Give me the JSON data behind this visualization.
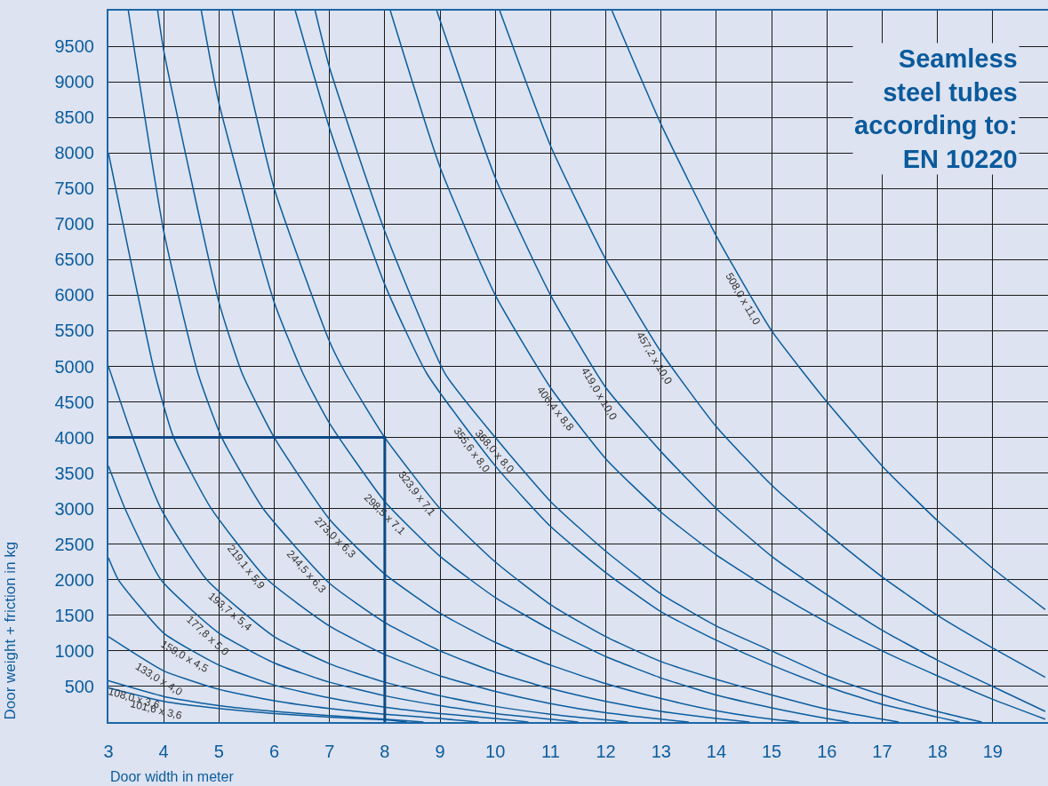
{
  "chart_data": {
    "type": "line",
    "title": "Seamless\nsteel tubes\naccording to:\nEN 10220",
    "xlabel": "Door width in meter",
    "ylabel": "Door weight + friction in kg",
    "xlim": [
      3,
      20
    ],
    "ylim": [
      0,
      10000
    ],
    "xticks": [
      3,
      4,
      5,
      6,
      7,
      8,
      9,
      10,
      11,
      12,
      13,
      14,
      15,
      16,
      17,
      18,
      19
    ],
    "yticks": [
      {
        "value": 0,
        "label": null
      },
      500,
      1000,
      1500,
      2000,
      2500,
      3000,
      3500,
      4000,
      4500,
      5000,
      5500,
      6000,
      6500,
      7000,
      7500,
      8000,
      8500,
      9000,
      9500,
      {
        "value": 10000,
        "label": null
      }
    ],
    "grid": true,
    "series": [
      {
        "color": "#0b5c9e",
        "x": [
          3,
          4,
          5,
          6,
          7,
          8,
          8.4
        ],
        "values": [
          480,
          290,
          190,
          120,
          70,
          30,
          0
        ]
      },
      {
        "color": "#0b5c9e",
        "x": [
          3,
          4,
          5,
          6,
          7,
          8,
          8.7
        ],
        "values": [
          580,
          360,
          230,
          150,
          90,
          40,
          0
        ]
      },
      {
        "color": "#0b5c9e",
        "x": [
          3,
          4,
          5,
          6,
          7,
          8,
          9,
          9.7
        ],
        "values": [
          1200,
          720,
          460,
          300,
          190,
          110,
          50,
          0
        ]
      },
      {
        "color": "#0b5c9e",
        "x": [
          3,
          3.18,
          4,
          5,
          6,
          7,
          8,
          9,
          10,
          10.6
        ],
        "values": [
          2310,
          2000,
          1250,
          800,
          520,
          340,
          210,
          120,
          50,
          0
        ]
      },
      {
        "color": "#0b5c9e",
        "x": [
          3,
          3.3,
          3.95,
          5,
          6,
          7,
          8,
          9,
          10,
          11,
          11.5
        ],
        "values": [
          3600,
          3000,
          2000,
          1250,
          830,
          560,
          370,
          230,
          120,
          40,
          0
        ]
      },
      {
        "color": "#0b5c9e",
        "x": [
          3,
          3.44,
          3.95,
          4.78,
          6,
          7,
          8,
          9,
          10,
          11,
          12,
          12.4
        ],
        "values": [
          5000,
          4000,
          3000,
          2000,
          1200,
          820,
          560,
          370,
          220,
          110,
          30,
          0
        ]
      },
      {
        "color": "#0b5c9e",
        "x": [
          3,
          3.84,
          4.18,
          4.86,
          5.88,
          7,
          8,
          9,
          10,
          11,
          12,
          13,
          13.5
        ],
        "values": [
          8000,
          4900,
          4000,
          3000,
          2000,
          1350,
          950,
          650,
          430,
          260,
          130,
          40,
          0
        ]
      },
      {
        "color": "#0b5c9e",
        "x": [
          3.36,
          4,
          4.62,
          5.05,
          5.8,
          7,
          8,
          9,
          10,
          11,
          12,
          13,
          14,
          14.6
        ],
        "values": [
          10000,
          6900,
          4900,
          4000,
          3000,
          1950,
          1400,
          1000,
          700,
          470,
          290,
          150,
          50,
          0
        ]
      },
      {
        "color": "#0b5c9e",
        "x": [
          3.89,
          4,
          5,
          5.42,
          6,
          7,
          8,
          9,
          10,
          11,
          12,
          13,
          14,
          15,
          15.5
        ],
        "values": [
          10000,
          9440,
          5900,
          4900,
          4000,
          2850,
          2080,
          1530,
          1120,
          800,
          540,
          330,
          160,
          40,
          0
        ]
      },
      {
        "color": "#0b5c9e",
        "x": [
          4.68,
          5,
          6,
          6.52,
          7,
          8,
          9,
          10,
          11,
          12,
          13,
          14,
          15,
          16,
          16.4
        ],
        "values": [
          10000,
          8700,
          5900,
          4900,
          4200,
          3100,
          2330,
          1750,
          1300,
          920,
          620,
          380,
          200,
          50,
          0
        ]
      },
      {
        "color": "#0b5c9e",
        "x": [
          5.24,
          6,
          7,
          7.29,
          8,
          9,
          10,
          11,
          12,
          13,
          14,
          15,
          16,
          17,
          17.3
        ],
        "values": [
          10000,
          7500,
          5350,
          4900,
          4000,
          3000,
          2250,
          1650,
          1200,
          850,
          600,
          380,
          180,
          40,
          0
        ]
      },
      {
        "color": "#0b5c9e",
        "x": [
          6.38,
          7,
          8,
          8.76,
          10,
          11,
          12,
          13,
          14,
          15,
          16,
          17,
          18,
          18.4
        ],
        "values": [
          10000,
          8350,
          6150,
          4900,
          3600,
          2750,
          2100,
          1550,
          1150,
          800,
          500,
          250,
          70,
          0
        ]
      },
      {
        "color": "#0b5c9e",
        "x": [
          6.74,
          7,
          8,
          9.09,
          10,
          11,
          12,
          13,
          14,
          15,
          16,
          17,
          18,
          18.8
        ],
        "values": [
          10000,
          9200,
          6900,
          4900,
          4000,
          3100,
          2400,
          1800,
          1350,
          1000,
          650,
          380,
          150,
          0
        ]
      },
      {
        "color": "#0b5c9e",
        "x": [
          8.1,
          9,
          10,
          11,
          12,
          13,
          14,
          15,
          16,
          17,
          18,
          19,
          19.95
        ],
        "values": [
          10000,
          7800,
          6000,
          4700,
          3700,
          2950,
          2350,
          1850,
          1400,
          1000,
          650,
          320,
          40
        ]
      },
      {
        "color": "#0b5c9e",
        "x": [
          8.94,
          10,
          11,
          12,
          13,
          14,
          15,
          16,
          17,
          18,
          19,
          19.95
        ],
        "values": [
          10000,
          7650,
          6000,
          4700,
          3800,
          3000,
          2330,
          1790,
          1290,
          870,
          500,
          150
        ]
      },
      {
        "color": "#0b5c9e",
        "x": [
          10.08,
          11,
          12,
          13,
          14,
          15,
          16,
          17,
          18,
          19,
          19.95
        ],
        "values": [
          10000,
          8100,
          6500,
          5200,
          4150,
          3330,
          2660,
          2040,
          1500,
          1040,
          630
        ]
      },
      {
        "color": "#0b5c9e",
        "x": [
          12.11,
          13,
          14,
          15,
          16,
          17,
          18,
          19,
          19.95
        ],
        "values": [
          10000,
          8400,
          6830,
          5500,
          4500,
          3600,
          2830,
          2160,
          1580
        ]
      },
      {
        "color": "#0d4a85",
        "x": [
          3,
          8,
          8
        ],
        "values": [
          4000,
          4000,
          0
        ]
      }
    ],
    "annotations": [
      {
        "text": "101,6 x 3,6",
        "x": 3.9,
        "y": 309
      },
      {
        "text": "108,0 x 3,6",
        "x": 3.5,
        "y": 470
      },
      {
        "text": "133,0 x 4,0",
        "x": 4.0,
        "y": 720
      },
      {
        "text": "159,0 x 4,5",
        "x": 4.45,
        "y": 1048
      },
      {
        "text": "177,8 x 5,0",
        "x": 4.9,
        "y": 1321
      },
      {
        "text": "193,7 x 5,4",
        "x": 5.3,
        "y": 1659
      },
      {
        "text": "219,1 x 5,9",
        "x": 5.6,
        "y": 2275
      },
      {
        "text": "244,5 x 6,3",
        "x": 6.7,
        "y": 2212
      },
      {
        "text": "273,0 x 6,3",
        "x": 7.2,
        "y": 2696
      },
      {
        "text": "298,5 x 7,1",
        "x": 8.1,
        "y": 3023
      },
      {
        "text": "323,9 x 7,1",
        "x": 8.7,
        "y": 3300
      },
      {
        "text": "355,6 x 8,0",
        "x": 9.7,
        "y": 3915
      },
      {
        "text": "368,0 x 8,0",
        "x": 10.1,
        "y": 3910
      },
      {
        "text": "406,4 x 8,8",
        "x": 11.2,
        "y": 4500
      },
      {
        "text": "419,0 x 10,0",
        "x": 12,
        "y": 4700
      },
      {
        "text": "457,2 x 10,0",
        "x": 13,
        "y": 5200
      },
      {
        "text": "508,0 x 11,0",
        "x": 14.6,
        "y": 6032
      }
    ]
  }
}
